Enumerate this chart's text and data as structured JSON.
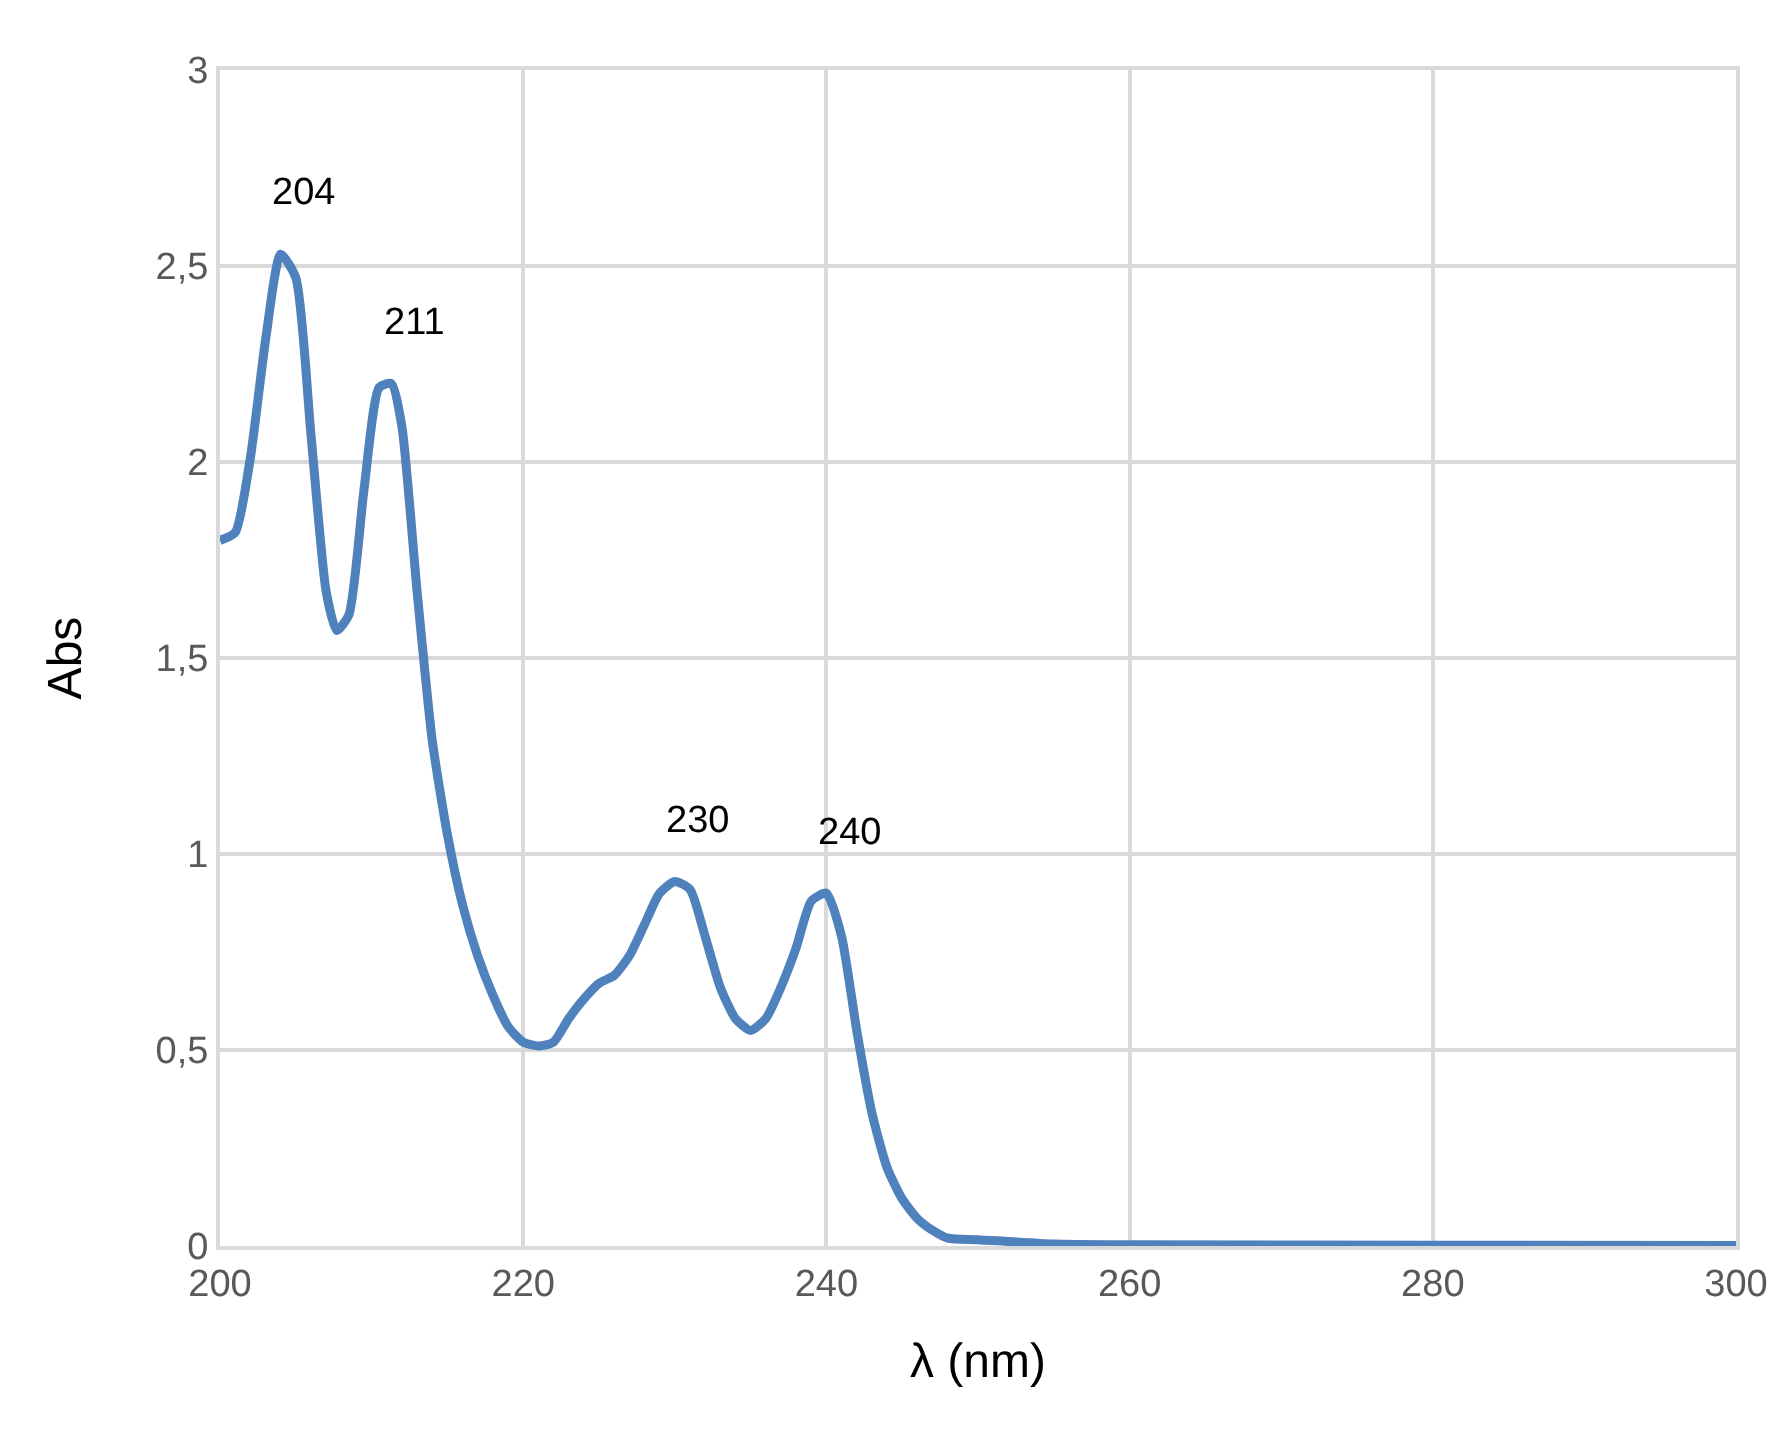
{
  "chart_data": {
    "type": "line",
    "xlabel": "λ (nm)",
    "ylabel": "Abs",
    "x": [
      200,
      201,
      202,
      203,
      204,
      205,
      206,
      207,
      207.7,
      208.5,
      209.5,
      210.5,
      211.3,
      212,
      213,
      214,
      215,
      216,
      217,
      218,
      219,
      220,
      221,
      222,
      223,
      224,
      225,
      226,
      227,
      228,
      229,
      230,
      231,
      232,
      233,
      234,
      235,
      236,
      237,
      238,
      239,
      240,
      241,
      242,
      243,
      244,
      245,
      246,
      247,
      248,
      250,
      255,
      260,
      280,
      300
    ],
    "series": [
      {
        "color": "#4f81bd",
        "values": [
          1.8,
          1.82,
          2.01,
          2.31,
          2.53,
          2.47,
          2.07,
          1.67,
          1.57,
          1.61,
          1.93,
          2.19,
          2.2,
          2.09,
          1.67,
          1.29,
          1.05,
          0.87,
          0.74,
          0.64,
          0.56,
          0.52,
          0.51,
          0.52,
          0.58,
          0.63,
          0.67,
          0.69,
          0.74,
          0.82,
          0.9,
          0.93,
          0.91,
          0.79,
          0.66,
          0.58,
          0.55,
          0.58,
          0.66,
          0.76,
          0.88,
          0.9,
          0.79,
          0.55,
          0.34,
          0.2,
          0.12,
          0.07,
          0.04,
          0.02,
          0.016,
          0.005,
          0.003,
          0.002,
          0.001
        ]
      }
    ],
    "xlim": [
      200,
      300
    ],
    "xticks": [
      200,
      220,
      240,
      260,
      280,
      300
    ],
    "ylim": [
      0,
      3
    ],
    "yticks": [
      0,
      {
        "value": 0.5,
        "label": "0,5"
      },
      1,
      {
        "value": 1.5,
        "label": "1,5"
      },
      2,
      {
        "value": 2.5,
        "label": "2,5"
      },
      3
    ],
    "annotations": [
      {
        "text": "204",
        "x": 204,
        "y": 2.53
      },
      {
        "text": "211",
        "x": 211.3,
        "y": 2.2
      },
      {
        "text": "230",
        "x": 230,
        "y": 0.93
      },
      {
        "text": "240",
        "x": 240,
        "y": 0.9
      }
    ],
    "grid": true,
    "marker": "none",
    "line_style": "solid",
    "legend": false
  }
}
